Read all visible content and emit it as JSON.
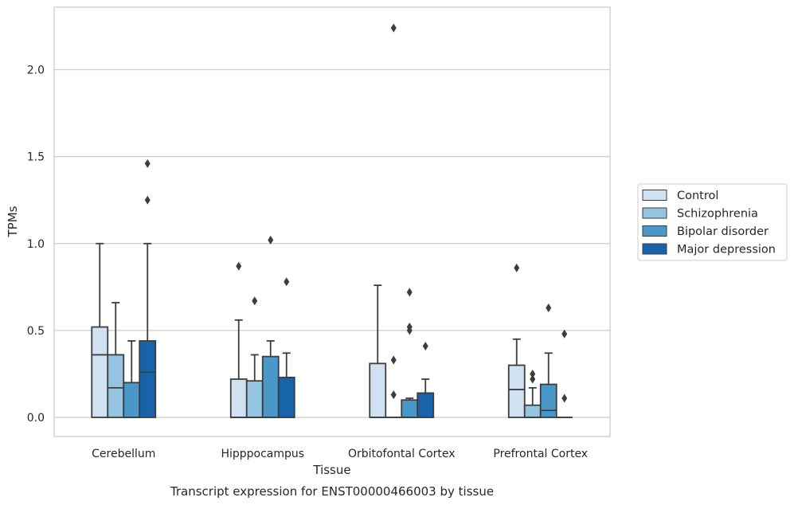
{
  "chart_data": {
    "type": "box",
    "title": "",
    "caption": "Transcript expression for ENST00000466003 by tissue",
    "xlabel": "Tissue",
    "ylabel": "TPMs",
    "ylim": [
      -0.11,
      2.36
    ],
    "yticks": [
      0.0,
      0.5,
      1.0,
      1.5,
      2.0
    ],
    "ytick_labels": [
      "0.0",
      "0.5",
      "1.0",
      "1.5",
      "2.0"
    ],
    "grid": "horizontal",
    "legend_position": "right",
    "categories": [
      "Cerebellum",
      "Hipppocampus",
      "Orbitofontal Cortex",
      "Prefrontal Cortex"
    ],
    "series": [
      {
        "name": "Control",
        "color": "#d0e1f2",
        "boxes": [
          {
            "q1": 0.0,
            "median": 0.36,
            "q3": 0.52,
            "whisker_low": 0.0,
            "whisker_high": 1.0,
            "outliers": []
          },
          {
            "q1": 0.0,
            "median": 0.0,
            "q3": 0.22,
            "whisker_low": 0.0,
            "whisker_high": 0.56,
            "outliers": [
              0.87
            ]
          },
          {
            "q1": 0.0,
            "median": 0.0,
            "q3": 0.31,
            "whisker_low": 0.0,
            "whisker_high": 0.76,
            "outliers": []
          },
          {
            "q1": 0.0,
            "median": 0.16,
            "q3": 0.3,
            "whisker_low": 0.0,
            "whisker_high": 0.45,
            "outliers": [
              0.86
            ]
          }
        ]
      },
      {
        "name": "Schizophrenia",
        "color": "#94c4df",
        "boxes": [
          {
            "q1": 0.0,
            "median": 0.17,
            "q3": 0.36,
            "whisker_low": 0.0,
            "whisker_high": 0.66,
            "outliers": []
          },
          {
            "q1": 0.0,
            "median": 0.0,
            "q3": 0.21,
            "whisker_low": 0.0,
            "whisker_high": 0.36,
            "outliers": [
              0.67
            ]
          },
          {
            "q1": 0.0,
            "median": 0.0,
            "q3": 0.0,
            "whisker_low": 0.0,
            "whisker_high": 0.0,
            "outliers": [
              0.13,
              0.33,
              2.24
            ]
          },
          {
            "q1": 0.0,
            "median": 0.0,
            "q3": 0.07,
            "whisker_low": 0.0,
            "whisker_high": 0.17,
            "outliers": [
              0.22,
              0.25
            ]
          }
        ]
      },
      {
        "name": "Bipolar disorder",
        "color": "#4a98c9",
        "boxes": [
          {
            "q1": 0.0,
            "median": 0.0,
            "q3": 0.2,
            "whisker_low": 0.0,
            "whisker_high": 0.44,
            "outliers": []
          },
          {
            "q1": 0.0,
            "median": 0.0,
            "q3": 0.35,
            "whisker_low": 0.0,
            "whisker_high": 0.44,
            "outliers": [
              1.02
            ]
          },
          {
            "q1": 0.0,
            "median": 0.0,
            "q3": 0.1,
            "whisker_low": 0.0,
            "whisker_high": 0.11,
            "outliers": [
              0.5,
              0.52,
              0.72
            ]
          },
          {
            "q1": 0.0,
            "median": 0.04,
            "q3": 0.19,
            "whisker_low": 0.0,
            "whisker_high": 0.37,
            "outliers": [
              0.63
            ]
          }
        ]
      },
      {
        "name": "Major depression",
        "color": "#1764ab",
        "boxes": [
          {
            "q1": 0.0,
            "median": 0.26,
            "q3": 0.44,
            "whisker_low": 0.0,
            "whisker_high": 1.0,
            "outliers": [
              1.25,
              1.46
            ]
          },
          {
            "q1": 0.0,
            "median": 0.0,
            "q3": 0.23,
            "whisker_low": 0.0,
            "whisker_high": 0.37,
            "outliers": [
              0.78
            ]
          },
          {
            "q1": 0.0,
            "median": 0.0,
            "q3": 0.14,
            "whisker_low": 0.0,
            "whisker_high": 0.22,
            "outliers": [
              0.41
            ]
          },
          {
            "q1": 0.0,
            "median": 0.0,
            "q3": 0.0,
            "whisker_low": 0.0,
            "whisker_high": 0.0,
            "outliers": [
              0.11,
              0.48
            ]
          }
        ]
      }
    ]
  }
}
